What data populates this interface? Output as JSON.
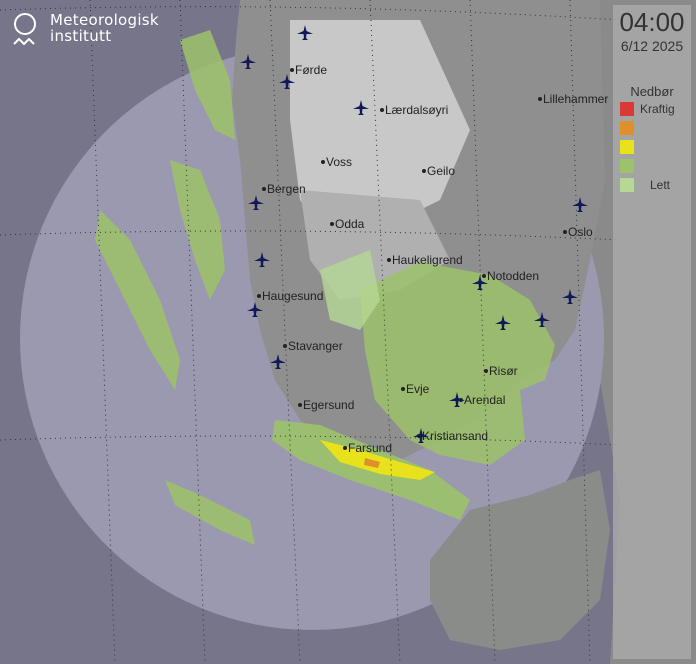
{
  "logo": {
    "line1": "Meteorologisk",
    "line2": "institutt"
  },
  "timestamp": {
    "time": "04:00",
    "date": "6/12 2025"
  },
  "legend": {
    "title": "Nedbør",
    "items": [
      {
        "color": "#d93a35",
        "label": "Kraftig"
      },
      {
        "color": "#e0902a",
        "label": ""
      },
      {
        "color": "#e8e21c",
        "label": ""
      },
      {
        "color": "#9cc26a",
        "label": ""
      },
      {
        "color": "#b5d895",
        "label": "Lett"
      }
    ]
  },
  "cities": [
    {
      "name": "Førde"
    },
    {
      "name": "Lærdalsøyri"
    },
    {
      "name": "Voss"
    },
    {
      "name": "Geilo"
    },
    {
      "name": "Bergen"
    },
    {
      "name": "Odda"
    },
    {
      "name": "Haukeligrend"
    },
    {
      "name": "Notodden"
    },
    {
      "name": "Oslo"
    },
    {
      "name": "Lillehammer"
    },
    {
      "name": "Haugesund"
    },
    {
      "name": "Stavanger"
    },
    {
      "name": "Evje"
    },
    {
      "name": "Risør"
    },
    {
      "name": "Arendal"
    },
    {
      "name": "Egersund"
    },
    {
      "name": "Farsund"
    },
    {
      "name": "Kristiansand"
    }
  ],
  "icons": {
    "airport": "airplane-icon",
    "logo": "met-logo-icon"
  }
}
